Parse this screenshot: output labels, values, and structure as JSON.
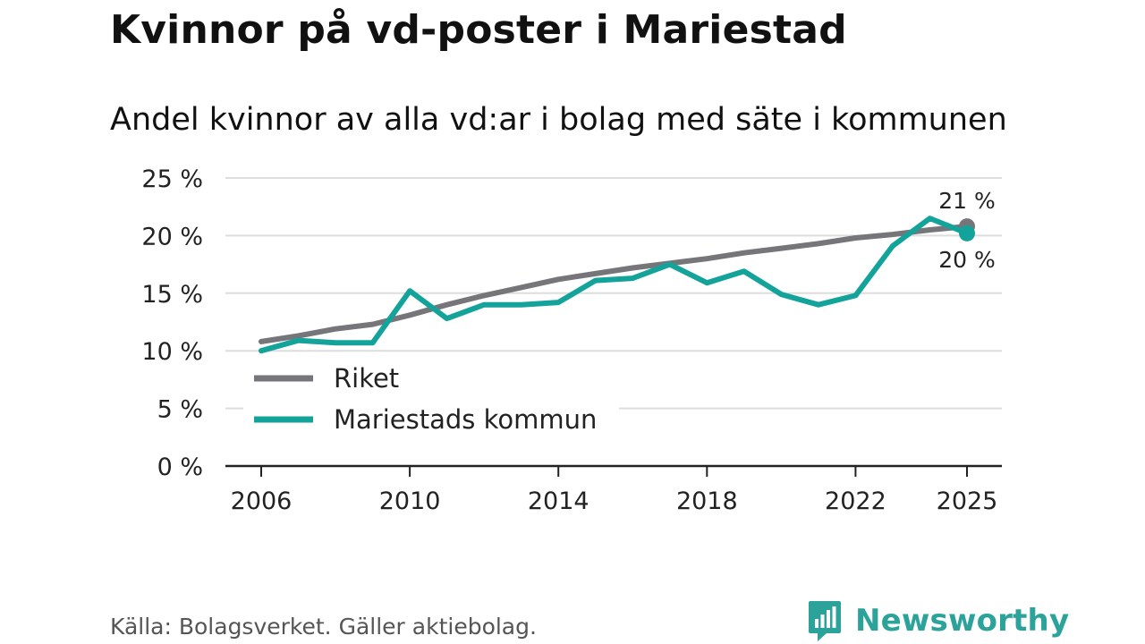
{
  "header": {
    "title": "Kvinnor på vd-poster i Mariestad",
    "subtitle": "Andel kvinnor av alla vd:ar i bolag med säte i kommunen"
  },
  "footer": {
    "source": "Källa: Bolagsverket. Gäller aktiebolag.",
    "brand_name": "Newsworthy",
    "brand_icon": "newsworthy-logo-icon"
  },
  "colors": {
    "riket": "#76767a",
    "kommun": "#14a39a",
    "grid": "#dddddd",
    "axis": "#222222",
    "brand": "#2ba39b"
  },
  "chart_data": {
    "type": "line",
    "title": "Andel kvinnor av alla vd:ar i bolag med säte i kommunen",
    "xlabel": "",
    "ylabel": "",
    "xlim": [
      2006,
      2025
    ],
    "ylim": [
      0,
      25
    ],
    "y_ticks": [
      0,
      5,
      10,
      15,
      20,
      25
    ],
    "y_tick_labels": [
      "0 %",
      "5 %",
      "10 %",
      "15 %",
      "20 %",
      "25 %"
    ],
    "x_ticks": [
      2006,
      2010,
      2014,
      2018,
      2022,
      2025
    ],
    "x_tick_labels": [
      "2006",
      "2010",
      "2014",
      "2018",
      "2022",
      "2025"
    ],
    "grid": true,
    "legend_position": "bottom-left",
    "series": [
      {
        "name": "Riket",
        "color": "#76767a",
        "x": [
          2006,
          2007,
          2008,
          2009,
          2010,
          2011,
          2012,
          2013,
          2014,
          2015,
          2016,
          2017,
          2018,
          2019,
          2020,
          2021,
          2022,
          2023,
          2024,
          2025
        ],
        "values": [
          10.8,
          11.3,
          11.9,
          12.3,
          13.1,
          14.0,
          14.8,
          15.5,
          16.2,
          16.7,
          17.2,
          17.6,
          18.0,
          18.5,
          18.9,
          19.3,
          19.8,
          20.1,
          20.5,
          20.8
        ],
        "end_label": "21 %"
      },
      {
        "name": "Mariestads kommun",
        "color": "#14a39a",
        "x": [
          2006,
          2007,
          2008,
          2009,
          2010,
          2011,
          2012,
          2013,
          2014,
          2015,
          2016,
          2017,
          2018,
          2019,
          2020,
          2021,
          2022,
          2023,
          2024,
          2025
        ],
        "values": [
          10.0,
          10.9,
          10.7,
          10.7,
          15.2,
          12.8,
          14.0,
          14.0,
          14.2,
          16.1,
          16.3,
          17.5,
          15.9,
          16.9,
          14.9,
          14.0,
          14.8,
          19.1,
          21.5,
          20.2
        ],
        "end_label": "20 %"
      }
    ]
  }
}
